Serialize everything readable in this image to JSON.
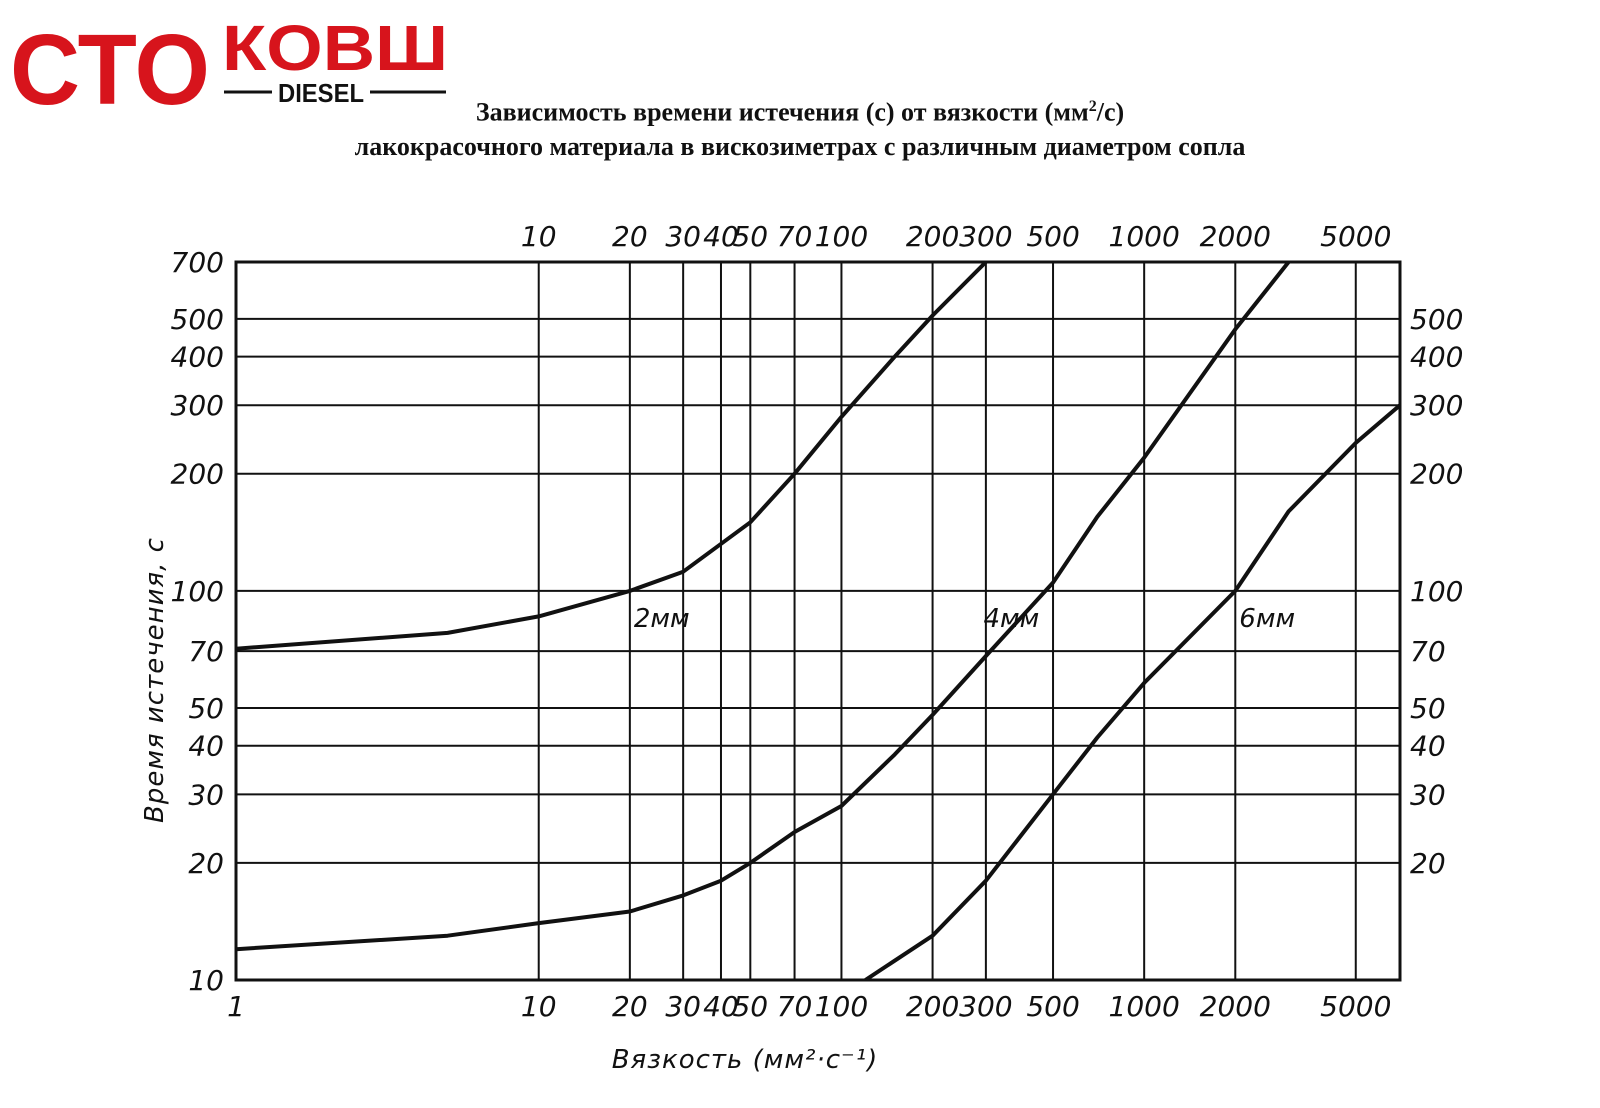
{
  "logo": {
    "part1": "СТО",
    "part2": "КОВШ",
    "part3": "DIESEL",
    "color": "#d7141c"
  },
  "title": {
    "line1_a": "Зависимость времени истечения (с) от вязкости (мм",
    "line1_sup": "2",
    "line1_b": "/с)",
    "line2": "лакокрасочного материала в вискозиметрах с различным диаметром сопла"
  },
  "chart_data": {
    "type": "line",
    "x_scale": "log",
    "y_scale": "log",
    "xlabel": "Вязкость (мм²·с⁻¹)",
    "ylabel": "Время истечения, с",
    "xlim": [
      1,
      7000
    ],
    "ylim": [
      10,
      700
    ],
    "grid": true,
    "x_ticks_bottom": [
      "1",
      "10",
      "20",
      "30",
      "40",
      "50",
      "70",
      "100",
      "200",
      "300",
      "500",
      "1000",
      "2000",
      "5000"
    ],
    "x_ticks_top": [
      "10",
      "20",
      "30",
      "40",
      "50",
      "70",
      "100",
      "200",
      "300",
      "500",
      "1000",
      "2000",
      "5000"
    ],
    "y_ticks_left": [
      "700",
      "500",
      "400",
      "300",
      "200",
      "100",
      "70",
      "50",
      "40",
      "30",
      "20",
      "10"
    ],
    "y_ticks_right": [
      "500",
      "400",
      "300",
      "200",
      "100",
      "70",
      "50",
      "40",
      "30",
      "20"
    ],
    "series": [
      {
        "name": "2мм",
        "x": [
          1,
          5,
          10,
          20,
          30,
          50,
          70,
          100,
          150,
          200,
          300
        ],
        "y": [
          71,
          78,
          86,
          100,
          112,
          150,
          200,
          280,
          400,
          510,
          700
        ]
      },
      {
        "name": "4мм",
        "x": [
          1,
          5,
          10,
          20,
          30,
          40,
          50,
          70,
          100,
          150,
          200,
          300,
          500,
          700,
          1000,
          2000,
          3000
        ],
        "y": [
          12,
          13,
          14,
          15,
          16.5,
          18,
          20,
          24,
          28,
          38,
          48,
          68,
          105,
          155,
          220,
          470,
          700
        ]
      },
      {
        "name": "6мм",
        "x": [
          120,
          200,
          300,
          500,
          700,
          1000,
          2000,
          3000,
          5000,
          7000
        ],
        "y": [
          10,
          13,
          18,
          30,
          42,
          58,
          100,
          160,
          240,
          300
        ]
      }
    ]
  }
}
